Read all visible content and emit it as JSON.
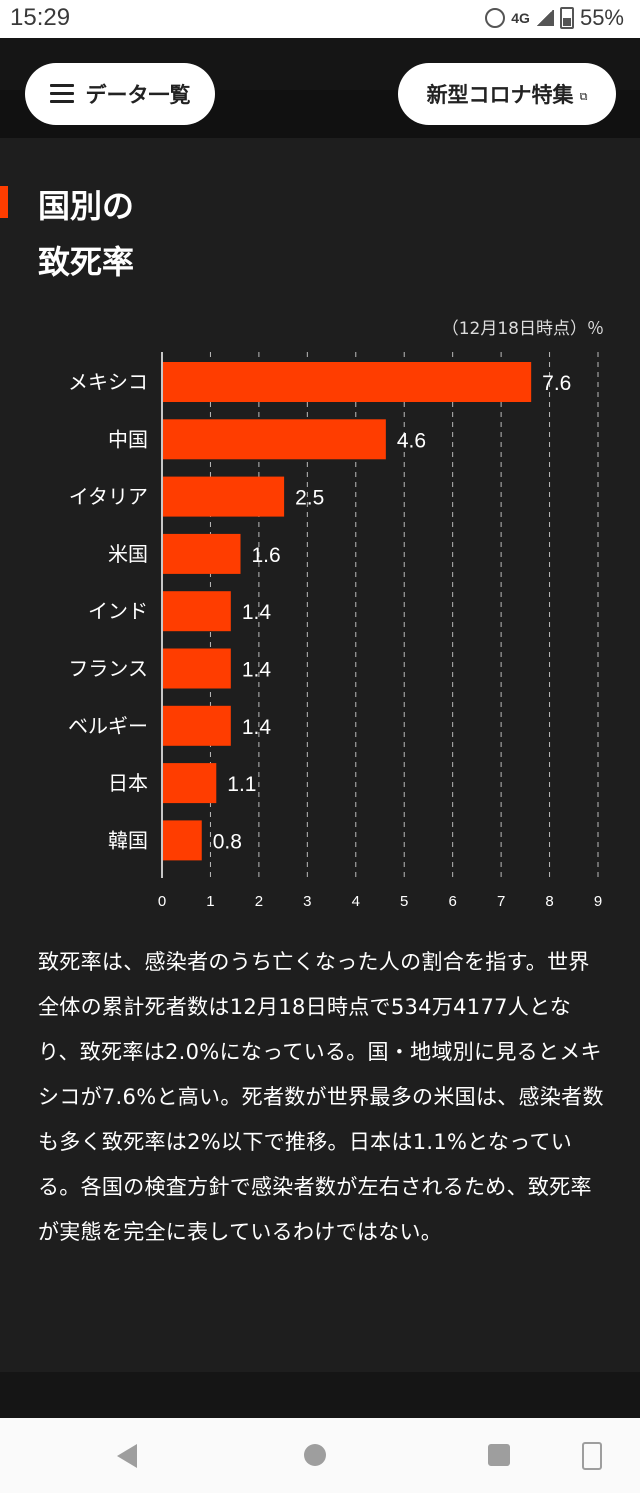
{
  "status_bar": {
    "time": "15:29",
    "network": "4G",
    "battery": "55%"
  },
  "header": {
    "menu_label": "データ一覧",
    "feature_label": "新型コロナ特集"
  },
  "section": {
    "title_line1": "国別の",
    "title_line2": "致死率"
  },
  "chart_data": {
    "type": "bar",
    "orientation": "horizontal",
    "note": "（12月18日時点）％",
    "categories": [
      "メキシコ",
      "中国",
      "イタリア",
      "米国",
      "インド",
      "フランス",
      "ベルギー",
      "日本",
      "韓国"
    ],
    "values": [
      7.6,
      4.6,
      2.5,
      1.6,
      1.4,
      1.4,
      1.4,
      1.1,
      0.8
    ],
    "value_labels": [
      "7.6",
      "4.6",
      "2.5",
      "1.6",
      "1.4",
      "1.4",
      "1.4",
      "1.1",
      "0.8"
    ],
    "xlim": [
      0,
      9
    ],
    "xticks": [
      "0",
      "1",
      "2",
      "3",
      "4",
      "5",
      "6",
      "7",
      "8",
      "9"
    ],
    "grid": "dashed vertical",
    "bar_color": "#ff3d00"
  },
  "paragraph": "致死率は、感染者のうち亡くなった人の割合を指す。世界全体の累計死者数は12月18日時点で534万4177人となり、致死率は2.0%になっている。国・地域別に見るとメキシコが7.6%と高い。死者数が世界最多の米国は、感染者数も多く致死率は2%以下で推移。日本は1.1%となっている。各国の検査方針で感染者数が左右されるため、致死率が実態を完全に表しているわけではない。",
  "colors": {
    "accent": "#ff3d00",
    "background": "#1e1e1e"
  }
}
